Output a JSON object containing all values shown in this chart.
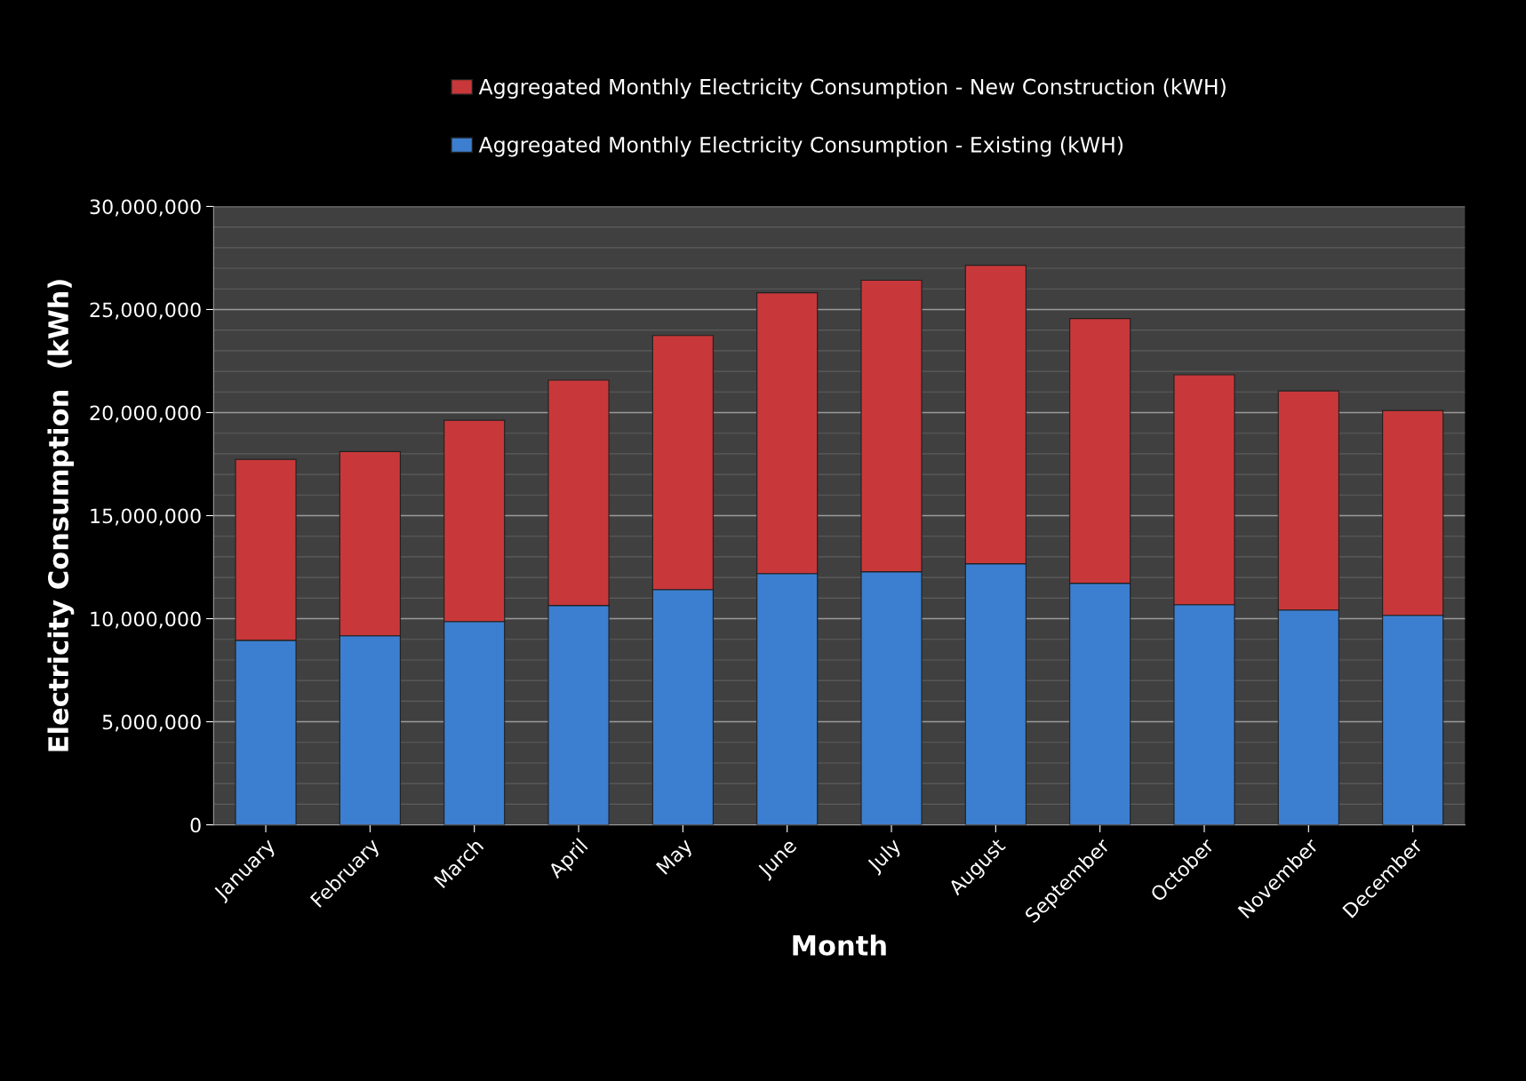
{
  "chart_data": {
    "type": "bar",
    "stacked": true,
    "xlabel": "Month",
    "ylabel": "Electricity Consumption  (kWh)",
    "categories": [
      "January",
      "February",
      "March",
      "April",
      "May",
      "June",
      "July",
      "August",
      "September",
      "October",
      "November",
      "December"
    ],
    "series": [
      {
        "name": "Aggregated Monthly Electricity Consumption - Existing (kWH)",
        "color": "#3c7fd0",
        "values": [
          8950000,
          9170000,
          9860000,
          10640000,
          11410000,
          12190000,
          12280000,
          12670000,
          11720000,
          10680000,
          10420000,
          10160000
        ]
      },
      {
        "name": "Aggregated Monthly Electricity Consumption - New Construction (kWH)",
        "color": "#c8383a",
        "values": [
          8780000,
          8940000,
          9770000,
          10930000,
          12330000,
          13620000,
          14140000,
          14480000,
          12840000,
          11150000,
          10630000,
          9940000
        ]
      }
    ],
    "ylim": [
      0,
      30000000
    ],
    "yticks": [
      {
        "value": 0,
        "label": "0"
      },
      {
        "value": 5000000,
        "label": "5,000,000"
      },
      {
        "value": 10000000,
        "label": "10,000,000"
      },
      {
        "value": 15000000,
        "label": "15,000,000"
      },
      {
        "value": 20000000,
        "label": "20,000,000"
      },
      {
        "value": 25000000,
        "label": "25,000,000"
      },
      {
        "value": 30000000,
        "label": "30,000,000"
      }
    ],
    "grid": "y",
    "legend": "top"
  }
}
